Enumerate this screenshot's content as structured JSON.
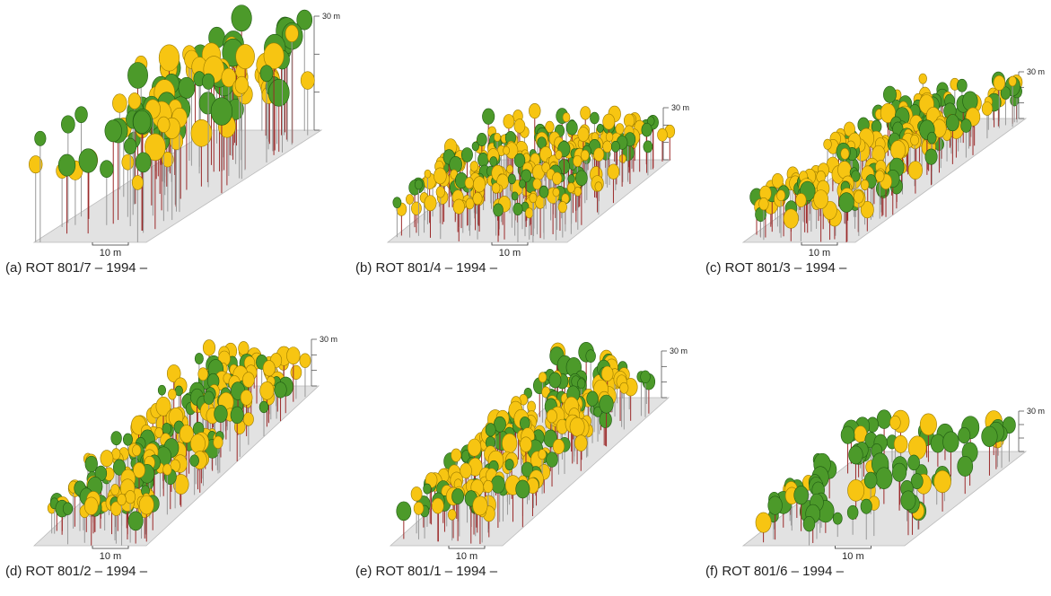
{
  "panels": [
    {
      "caption": "(a) ROT 801/7  – 1994 –",
      "height_label": "30 m",
      "scale_label": "10 m"
    },
    {
      "caption": "(b) ROT 801/4  – 1994 –",
      "height_label": "30 m",
      "scale_label": "10 m"
    },
    {
      "caption": "(c) ROT 801/3  – 1994 –",
      "height_label": "30 m",
      "scale_label": "10 m"
    },
    {
      "caption": "(d) ROT 801/2  – 1994 –",
      "height_label": "30 m",
      "scale_label": "10 m"
    },
    {
      "caption": "(e) ROT 801/1  – 1994 –",
      "height_label": "30 m",
      "scale_label": "10 m"
    },
    {
      "caption": "(f) ROT 801/6  – 1994 –",
      "height_label": "30 m",
      "scale_label": "10 m"
    }
  ]
}
